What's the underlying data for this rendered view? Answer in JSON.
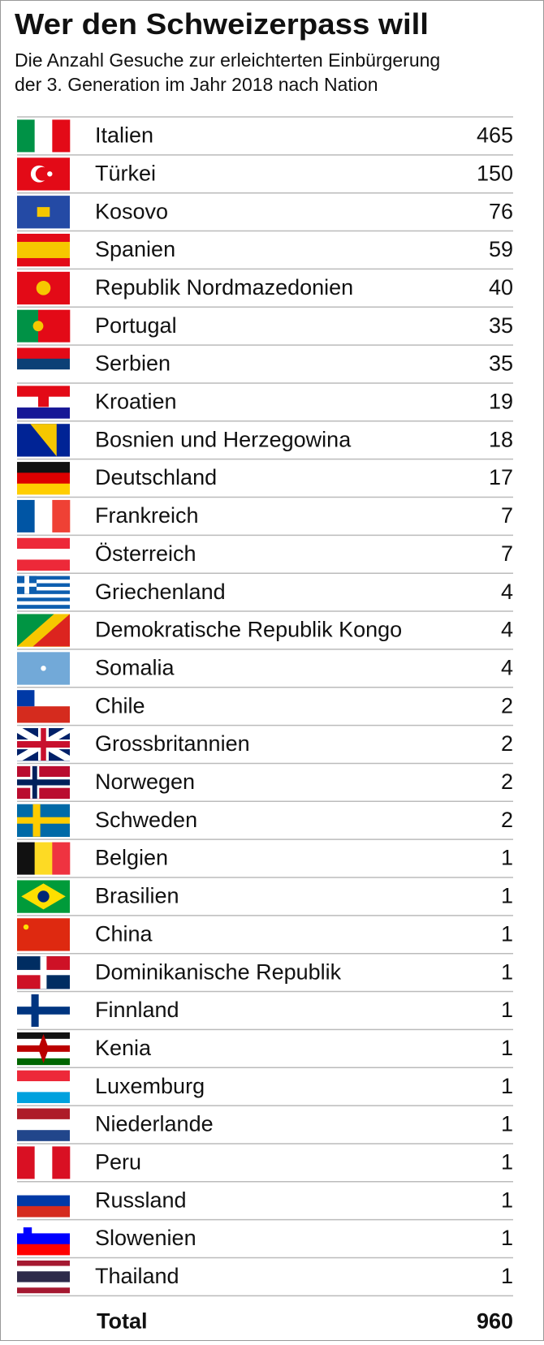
{
  "header": {
    "title": "Wer den Schweizerpass will",
    "subtitle": [
      "Die Anzahl Gesuche zur erleichterten Einbürgerung",
      "der 3. Generation im Jahr 2018 nach Nation"
    ]
  },
  "table": {
    "rows": [
      {
        "country": "Italien",
        "count": 465
      },
      {
        "country": "Türkei",
        "count": 150
      },
      {
        "country": "Kosovo",
        "count": 76
      },
      {
        "country": "Spanien",
        "count": 59
      },
      {
        "country": "Republik Nordmazedonien",
        "count": 40
      },
      {
        "country": "Portugal",
        "count": 35
      },
      {
        "country": "Serbien",
        "count": 35
      },
      {
        "country": "Kroatien",
        "count": 19
      },
      {
        "country": "Bosnien und Herzegowina",
        "count": 18
      },
      {
        "country": "Deutschland",
        "count": 17
      },
      {
        "country": "Frankreich",
        "count": 7
      },
      {
        "country": "Österreich",
        "count": 7
      },
      {
        "country": "Griechenland",
        "count": 4
      },
      {
        "country": "Demokratische Republik Kongo",
        "count": 4
      },
      {
        "country": "Somalia",
        "count": 4
      },
      {
        "country": "Chile",
        "count": 2
      },
      {
        "country": "Grossbritannien",
        "count": 2
      },
      {
        "country": "Norwegen",
        "count": 2
      },
      {
        "country": "Schweden",
        "count": 2
      },
      {
        "country": "Belgien",
        "count": 1
      },
      {
        "country": "Brasilien",
        "count": 1
      },
      {
        "country": "China",
        "count": 1
      },
      {
        "country": "Dominikanische Republik",
        "count": 1
      },
      {
        "country": "Finnland",
        "count": 1
      },
      {
        "country": "Kenia",
        "count": 1
      },
      {
        "country": "Luxemburg",
        "count": 1
      },
      {
        "country": "Niederlande",
        "count": 1
      },
      {
        "country": "Peru",
        "count": 1
      },
      {
        "country": "Russland",
        "count": 1
      },
      {
        "country": "Slowenien",
        "count": 1
      },
      {
        "country": "Thailand",
        "count": 1
      }
    ],
    "total": {
      "label": "Total",
      "count": 960
    }
  }
}
